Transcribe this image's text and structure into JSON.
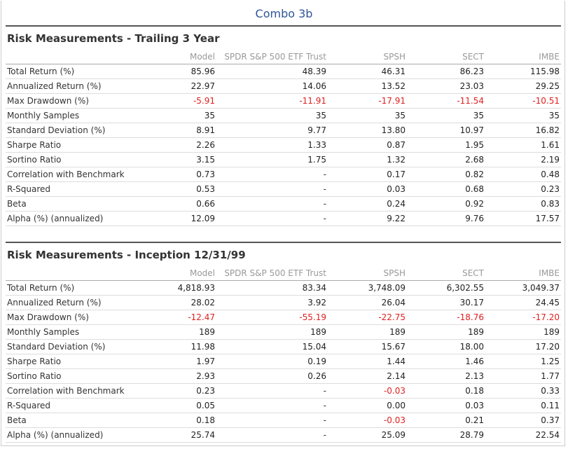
{
  "page_title": "Combo 3b",
  "columns": [
    "Model",
    "SPDR S&P 500 ETF Trust",
    "SPSH",
    "SECT",
    "IMBE"
  ],
  "colors": {
    "title": "#2f5597",
    "negative": "#e02020",
    "header_text": "#999999"
  },
  "sections": [
    {
      "title": "Risk Measurements - Trailing 3 Year",
      "rows": [
        {
          "label": "Total Return (%)",
          "values": [
            "85.96",
            "48.39",
            "46.31",
            "86.23",
            "115.98"
          ]
        },
        {
          "label": "Annualized Return (%)",
          "values": [
            "22.97",
            "14.06",
            "13.52",
            "23.03",
            "29.25"
          ]
        },
        {
          "label": "Max Drawdown (%)",
          "values": [
            "-5.91",
            "-11.91",
            "-17.91",
            "-11.54",
            "-10.51"
          ]
        },
        {
          "label": "Monthly Samples",
          "values": [
            "35",
            "35",
            "35",
            "35",
            "35"
          ]
        },
        {
          "label": "Standard Deviation (%)",
          "values": [
            "8.91",
            "9.77",
            "13.80",
            "10.97",
            "16.82"
          ]
        },
        {
          "label": "Sharpe Ratio",
          "values": [
            "2.26",
            "1.33",
            "0.87",
            "1.95",
            "1.61"
          ]
        },
        {
          "label": "Sortino Ratio",
          "values": [
            "3.15",
            "1.75",
            "1.32",
            "2.68",
            "2.19"
          ]
        },
        {
          "label": "Correlation with Benchmark",
          "values": [
            "0.73",
            "-",
            "0.17",
            "0.82",
            "0.48"
          ]
        },
        {
          "label": "R-Squared",
          "values": [
            "0.53",
            "-",
            "0.03",
            "0.68",
            "0.23"
          ]
        },
        {
          "label": "Beta",
          "values": [
            "0.66",
            "-",
            "0.24",
            "0.92",
            "0.83"
          ]
        },
        {
          "label": "Alpha (%) (annualized)",
          "values": [
            "12.09",
            "-",
            "9.22",
            "9.76",
            "17.57"
          ]
        }
      ]
    },
    {
      "title": "Risk Measurements - Inception 12/31/99",
      "rows": [
        {
          "label": "Total Return (%)",
          "values": [
            "4,818.93",
            "83.34",
            "3,748.09",
            "6,302.55",
            "3,049.37"
          ]
        },
        {
          "label": "Annualized Return (%)",
          "values": [
            "28.02",
            "3.92",
            "26.04",
            "30.17",
            "24.45"
          ]
        },
        {
          "label": "Max Drawdown (%)",
          "values": [
            "-12.47",
            "-55.19",
            "-22.75",
            "-18.76",
            "-17.20"
          ]
        },
        {
          "label": "Monthly Samples",
          "values": [
            "189",
            "189",
            "189",
            "189",
            "189"
          ]
        },
        {
          "label": "Standard Deviation (%)",
          "values": [
            "11.98",
            "15.04",
            "15.67",
            "18.00",
            "17.20"
          ]
        },
        {
          "label": "Sharpe Ratio",
          "values": [
            "1.97",
            "0.19",
            "1.44",
            "1.46",
            "1.25"
          ]
        },
        {
          "label": "Sortino Ratio",
          "values": [
            "2.93",
            "0.26",
            "2.14",
            "2.13",
            "1.77"
          ]
        },
        {
          "label": "Correlation with Benchmark",
          "values": [
            "0.23",
            "-",
            "-0.03",
            "0.18",
            "0.33"
          ]
        },
        {
          "label": "R-Squared",
          "values": [
            "0.05",
            "-",
            "0.00",
            "0.03",
            "0.11"
          ]
        },
        {
          "label": "Beta",
          "values": [
            "0.18",
            "-",
            "-0.03",
            "0.21",
            "0.37"
          ]
        },
        {
          "label": "Alpha (%) (annualized)",
          "values": [
            "25.74",
            "-",
            "25.09",
            "28.79",
            "22.54"
          ]
        }
      ]
    }
  ]
}
